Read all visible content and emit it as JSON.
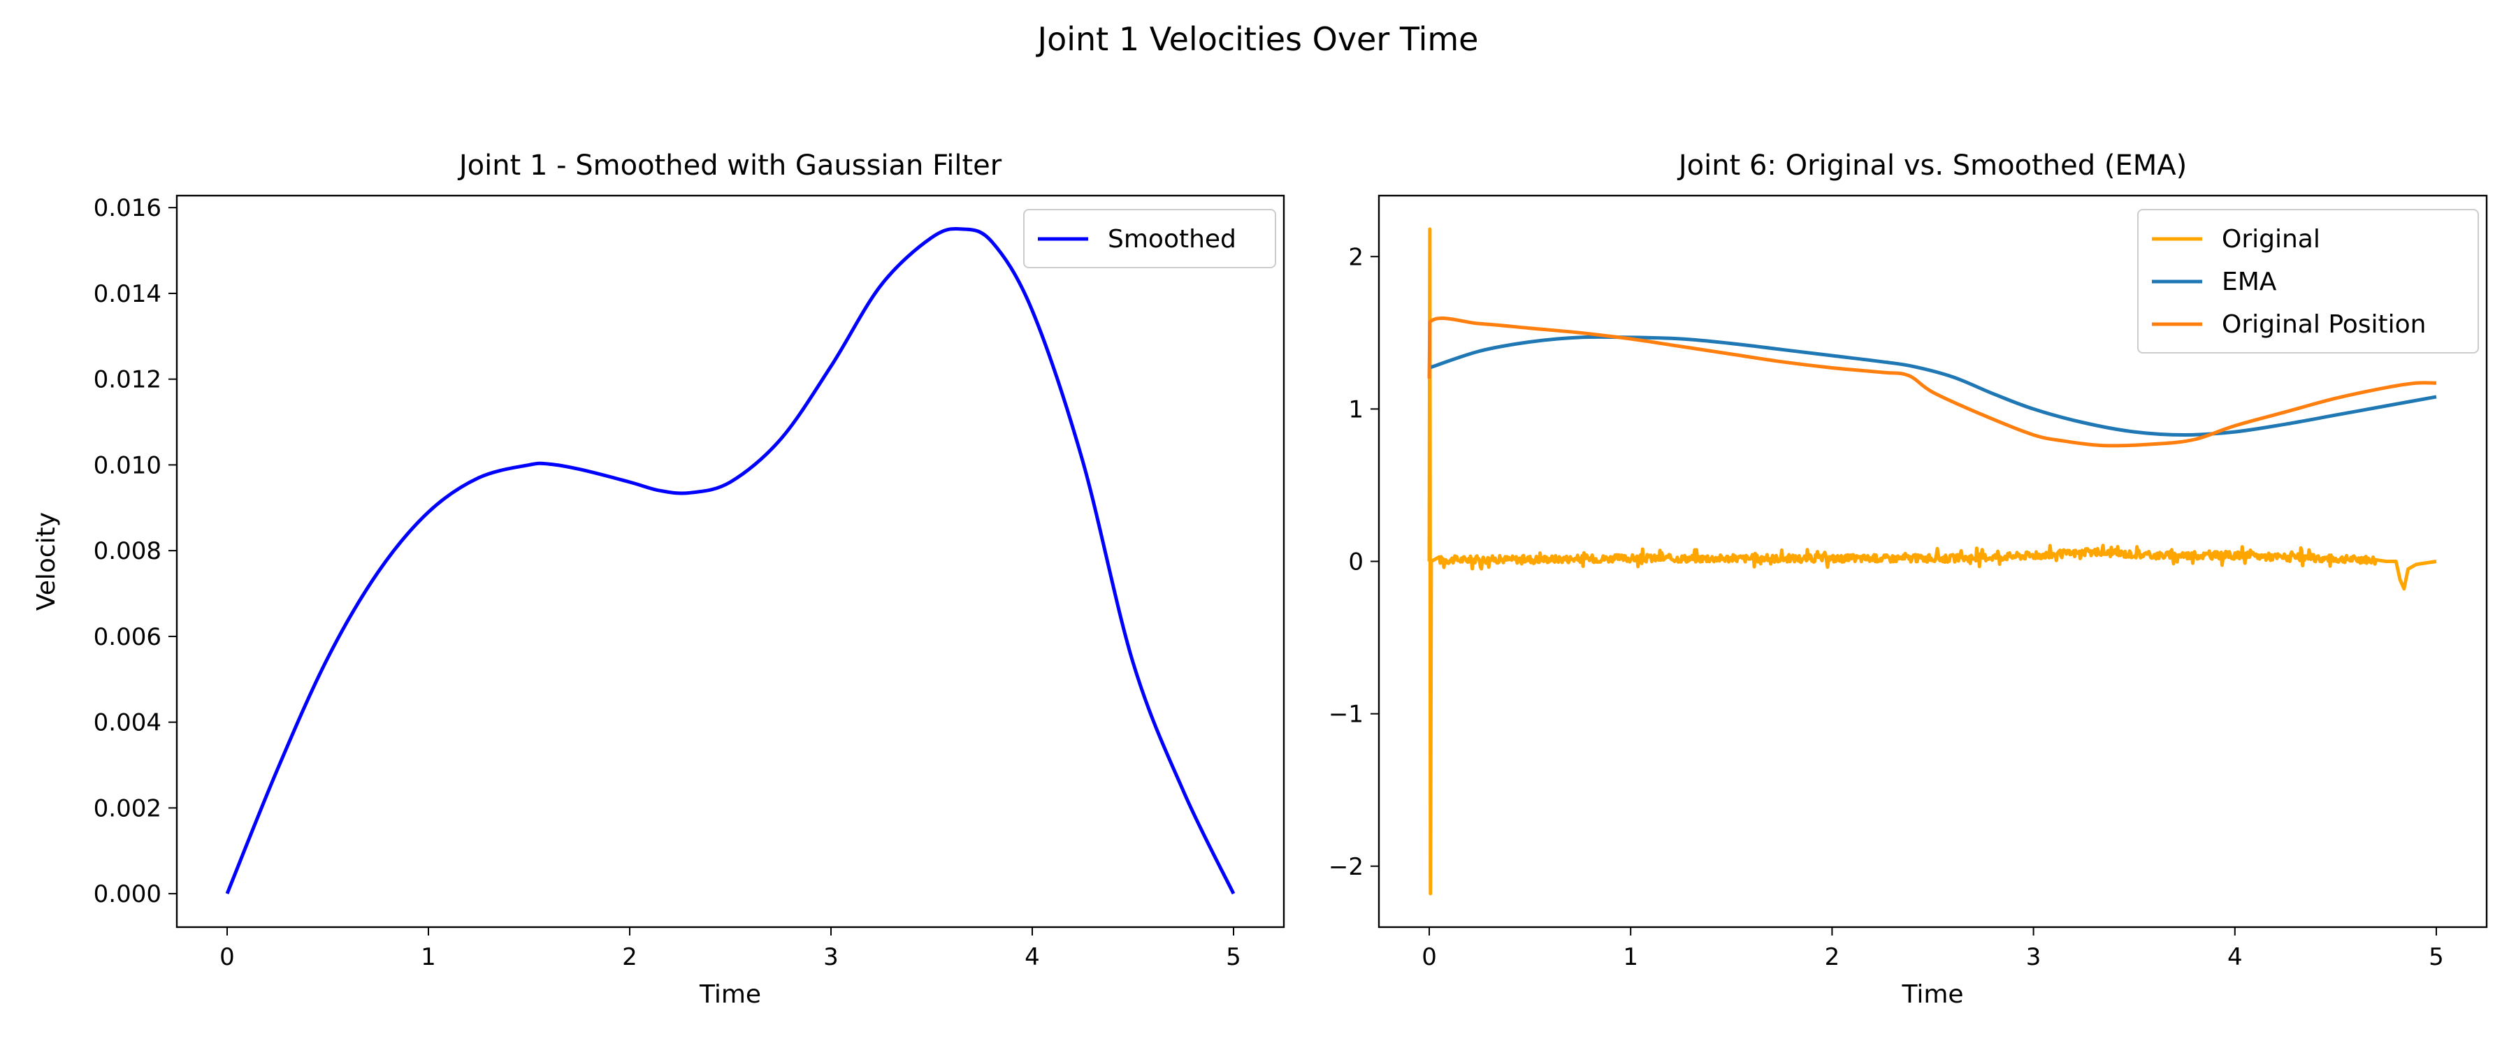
{
  "figure": {
    "suptitle": "Joint 1 Velocities Over Time"
  },
  "chart_data": [
    {
      "type": "line",
      "title": "Joint 1 - Smoothed with Gaussian Filter",
      "xlabel": "Time",
      "ylabel": "Velocity",
      "xlim": [
        -0.25,
        5.25
      ],
      "ylim": [
        -0.00078,
        0.01628
      ],
      "xticks": [
        0,
        1,
        2,
        3,
        4,
        5
      ],
      "xtick_labels": [
        "0",
        "1",
        "2",
        "3",
        "4",
        "5"
      ],
      "yticks": [
        0,
        0.002,
        0.004,
        0.006,
        0.008,
        0.01,
        0.012,
        0.014,
        0.016
      ],
      "ytick_labels": [
        "0.000",
        "0.002",
        "0.004",
        "0.006",
        "0.008",
        "0.010",
        "0.012",
        "0.014",
        "0.016"
      ],
      "grid": false,
      "legend": "top-right",
      "series": [
        {
          "name": "Smoothed",
          "color": "#0000ff",
          "x": [
            0,
            0.25,
            0.5,
            0.75,
            1.0,
            1.25,
            1.5,
            1.6,
            1.75,
            2.0,
            2.15,
            2.3,
            2.5,
            2.75,
            3.0,
            3.25,
            3.5,
            3.65,
            3.8,
            4.0,
            4.25,
            4.5,
            4.75,
            5.0
          ],
          "y": [
            0,
            0.0029,
            0.0055,
            0.0075,
            0.0089,
            0.0097,
            0.01,
            0.01002,
            0.0099,
            0.0096,
            0.0094,
            0.00935,
            0.0096,
            0.0106,
            0.0123,
            0.0142,
            0.0153,
            0.0155,
            0.0152,
            0.0136,
            0.0101,
            0.0054,
            0.0024,
            0
          ]
        }
      ]
    },
    {
      "type": "line",
      "title": "Joint 6: Original vs. Smoothed (EMA)",
      "xlabel": "Time",
      "xlim": [
        -0.25,
        5.25
      ],
      "ylim": [
        -2.4,
        2.4
      ],
      "xticks": [
        0,
        1,
        2,
        3,
        4,
        5
      ],
      "xtick_labels": [
        "0",
        "1",
        "2",
        "3",
        "4",
        "5"
      ],
      "yticks": [
        -2,
        -1,
        0,
        1,
        2
      ],
      "ytick_labels": [
        "−2",
        "−1",
        "0",
        "1",
        "2"
      ],
      "grid": false,
      "legend": "top-right",
      "series": [
        {
          "name": "Original",
          "color": "#ffa500",
          "x": [
            0,
            0.003,
            0.006,
            0.01,
            0.05,
            1.0,
            2.0,
            2.6,
            3.0,
            3.3,
            3.6,
            4.0,
            4.4,
            4.7,
            4.75,
            4.8,
            4.82,
            4.84,
            4.86,
            4.9,
            5.0
          ],
          "y": [
            0,
            2.18,
            -2.18,
            0.0,
            0.01,
            0.02,
            0.02,
            0.02,
            0.04,
            0.06,
            0.04,
            0.04,
            0.02,
            0.01,
            0.0,
            0.0,
            -0.12,
            -0.18,
            -0.05,
            -0.02,
            0.0
          ],
          "noise": 0.05
        },
        {
          "name": "EMA",
          "color": "#1f77b4",
          "x": [
            0,
            0.25,
            0.5,
            0.75,
            1.0,
            1.25,
            1.5,
            1.75,
            2.0,
            2.25,
            2.4,
            2.6,
            2.8,
            3.0,
            3.25,
            3.5,
            3.75,
            4.0,
            4.25,
            4.5,
            4.75,
            5.0
          ],
          "y": [
            1.27,
            1.38,
            1.44,
            1.47,
            1.47,
            1.46,
            1.43,
            1.39,
            1.35,
            1.31,
            1.28,
            1.21,
            1.1,
            1.0,
            0.91,
            0.85,
            0.83,
            0.85,
            0.9,
            0.96,
            1.02,
            1.08
          ]
        },
        {
          "name": "Original Position",
          "color": "#ff7f0e",
          "x": [
            0,
            0.003,
            0.25,
            0.5,
            0.75,
            1.0,
            1.25,
            1.5,
            1.75,
            2.0,
            2.25,
            2.38,
            2.5,
            2.75,
            3.0,
            3.15,
            3.35,
            3.6,
            3.8,
            4.0,
            4.25,
            4.5,
            4.75,
            4.9,
            5.0
          ],
          "y": [
            1.2,
            1.57,
            1.56,
            1.53,
            1.5,
            1.46,
            1.41,
            1.36,
            1.31,
            1.27,
            1.24,
            1.22,
            1.11,
            0.96,
            0.83,
            0.79,
            0.76,
            0.77,
            0.8,
            0.89,
            0.98,
            1.07,
            1.14,
            1.17,
            1.17
          ]
        }
      ]
    }
  ]
}
